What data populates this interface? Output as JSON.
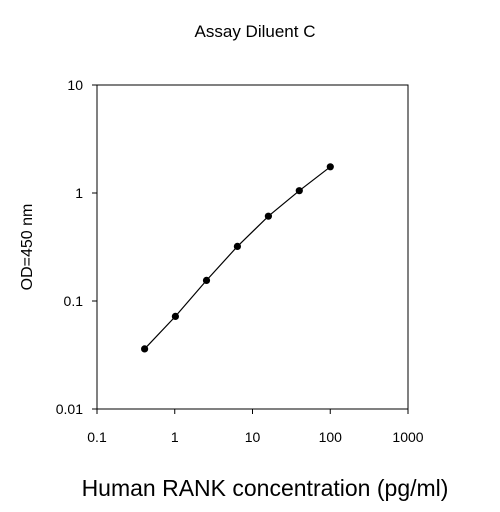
{
  "chart_data": {
    "type": "scatter",
    "title": "Assay Diluent C",
    "xlabel": "Human RANK concentration (pg/ml)",
    "ylabel": "OD=450 nm",
    "x_scale": "log",
    "y_scale": "log",
    "xlim": [
      0.1,
      1000
    ],
    "ylim": [
      0.01,
      10
    ],
    "x_ticks": [
      "0.1",
      "1",
      "10",
      "100",
      "1000"
    ],
    "y_ticks": [
      "0.01",
      "0.1",
      "1",
      "10"
    ],
    "grid": false,
    "line_connected": true,
    "series": [
      {
        "x": [
          0.41,
          1.02,
          2.56,
          6.4,
          16,
          40,
          100
        ],
        "y": [
          0.036,
          0.072,
          0.155,
          0.32,
          0.61,
          1.05,
          1.75
        ]
      }
    ]
  }
}
